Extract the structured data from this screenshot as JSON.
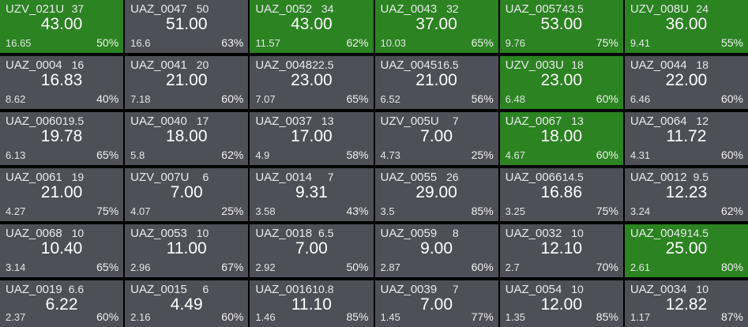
{
  "colors": {
    "highlight": "#2b8321",
    "default": "#4f4f58",
    "background": "#000000"
  },
  "tiles": [
    {
      "name": "UZV_021U",
      "qty": "37",
      "price": "43.00",
      "sub": "16.65",
      "pct": "50%",
      "hl": true
    },
    {
      "name": "UAZ_0047",
      "qty": "50",
      "price": "51.00",
      "sub": "16.6",
      "pct": "63%",
      "hl": false
    },
    {
      "name": "UAZ_0052",
      "qty": "34",
      "price": "43.00",
      "sub": "11.57",
      "pct": "62%",
      "hl": true
    },
    {
      "name": "UAZ_0043",
      "qty": "32",
      "price": "37.00",
      "sub": "10.03",
      "pct": "65%",
      "hl": true
    },
    {
      "name": "UAZ_0057",
      "qty": "43.5",
      "price": "53.00",
      "sub": "9.76",
      "pct": "75%",
      "hl": true
    },
    {
      "name": "UZV_008U",
      "qty": "24",
      "price": "36.00",
      "sub": "9.41",
      "pct": "55%",
      "hl": true
    },
    {
      "name": "UAZ_0004",
      "qty": "16",
      "price": "16.83",
      "sub": "8.62",
      "pct": "40%",
      "hl": false
    },
    {
      "name": "UAZ_0041",
      "qty": "20",
      "price": "21.00",
      "sub": "7.18",
      "pct": "60%",
      "hl": false
    },
    {
      "name": "UAZ_0048",
      "qty": "22.5",
      "price": "23.00",
      "sub": "7.07",
      "pct": "65%",
      "hl": false
    },
    {
      "name": "UAZ_0045",
      "qty": "16.5",
      "price": "21.00",
      "sub": "6.52",
      "pct": "56%",
      "hl": false
    },
    {
      "name": "UZV_003U",
      "qty": "18",
      "price": "23.00",
      "sub": "6.48",
      "pct": "60%",
      "hl": true
    },
    {
      "name": "UAZ_0044",
      "qty": "18",
      "price": "22.00",
      "sub": "6.46",
      "pct": "60%",
      "hl": false
    },
    {
      "name": "UAZ_0060",
      "qty": "19.5",
      "price": "19.78",
      "sub": "6.13",
      "pct": "65%",
      "hl": false
    },
    {
      "name": "UAZ_0040",
      "qty": "17",
      "price": "18.00",
      "sub": "5.8",
      "pct": "62%",
      "hl": false
    },
    {
      "name": "UAZ_0037",
      "qty": "13",
      "price": "17.00",
      "sub": "4.9",
      "pct": "58%",
      "hl": false
    },
    {
      "name": "UZV_005U",
      "qty": "7",
      "price": "7.00",
      "sub": "4.73",
      "pct": "25%",
      "hl": false
    },
    {
      "name": "UAZ_0067",
      "qty": "13",
      "price": "18.00",
      "sub": "4.67",
      "pct": "60%",
      "hl": true
    },
    {
      "name": "UAZ_0064",
      "qty": "12",
      "price": "11.72",
      "sub": "4.31",
      "pct": "60%",
      "hl": false
    },
    {
      "name": "UAZ_0061",
      "qty": "19",
      "price": "21.00",
      "sub": "4.27",
      "pct": "75%",
      "hl": false
    },
    {
      "name": "UZV_007U",
      "qty": "6",
      "price": "7.00",
      "sub": "4.07",
      "pct": "25%",
      "hl": false
    },
    {
      "name": "UAZ_0014",
      "qty": "7",
      "price": "9.31",
      "sub": "3.58",
      "pct": "43%",
      "hl": false
    },
    {
      "name": "UAZ_0055",
      "qty": "26",
      "price": "29.00",
      "sub": "3.5",
      "pct": "85%",
      "hl": false
    },
    {
      "name": "UAZ_0066",
      "qty": "14.5",
      "price": "16.86",
      "sub": "3.25",
      "pct": "75%",
      "hl": false
    },
    {
      "name": "UAZ_0012",
      "qty": "9.5",
      "price": "12.23",
      "sub": "3.24",
      "pct": "62%",
      "hl": false
    },
    {
      "name": "UAZ_0068",
      "qty": "10",
      "price": "10.40",
      "sub": "3.14",
      "pct": "65%",
      "hl": false
    },
    {
      "name": "UAZ_0053",
      "qty": "10",
      "price": "11.00",
      "sub": "2.96",
      "pct": "67%",
      "hl": false
    },
    {
      "name": "UAZ_0018",
      "qty": "6.5",
      "price": "7.00",
      "sub": "2.92",
      "pct": "50%",
      "hl": false
    },
    {
      "name": "UAZ_0059",
      "qty": "8",
      "price": "9.00",
      "sub": "2.87",
      "pct": "60%",
      "hl": false
    },
    {
      "name": "UAZ_0032",
      "qty": "10",
      "price": "12.10",
      "sub": "2.7",
      "pct": "70%",
      "hl": false
    },
    {
      "name": "UAZ_0049",
      "qty": "14.5",
      "price": "25.00",
      "sub": "2.61",
      "pct": "80%",
      "hl": true
    },
    {
      "name": "UAZ_0019",
      "qty": "6.6",
      "price": "6.22",
      "sub": "2.37",
      "pct": "60%",
      "hl": false
    },
    {
      "name": "UAZ_0015",
      "qty": "6",
      "price": "4.49",
      "sub": "2.16",
      "pct": "60%",
      "hl": false
    },
    {
      "name": "UAZ_0016",
      "qty": "10.8",
      "price": "11.10",
      "sub": "1.46",
      "pct": "85%",
      "hl": false
    },
    {
      "name": "UAZ_0039",
      "qty": "7",
      "price": "7.00",
      "sub": "1.45",
      "pct": "77%",
      "hl": false
    },
    {
      "name": "UAZ_0054",
      "qty": "10",
      "price": "12.00",
      "sub": "1.35",
      "pct": "85%",
      "hl": false
    },
    {
      "name": "UAZ_0034",
      "qty": "10",
      "price": "12.82",
      "sub": "1.17",
      "pct": "87%",
      "hl": false
    }
  ]
}
